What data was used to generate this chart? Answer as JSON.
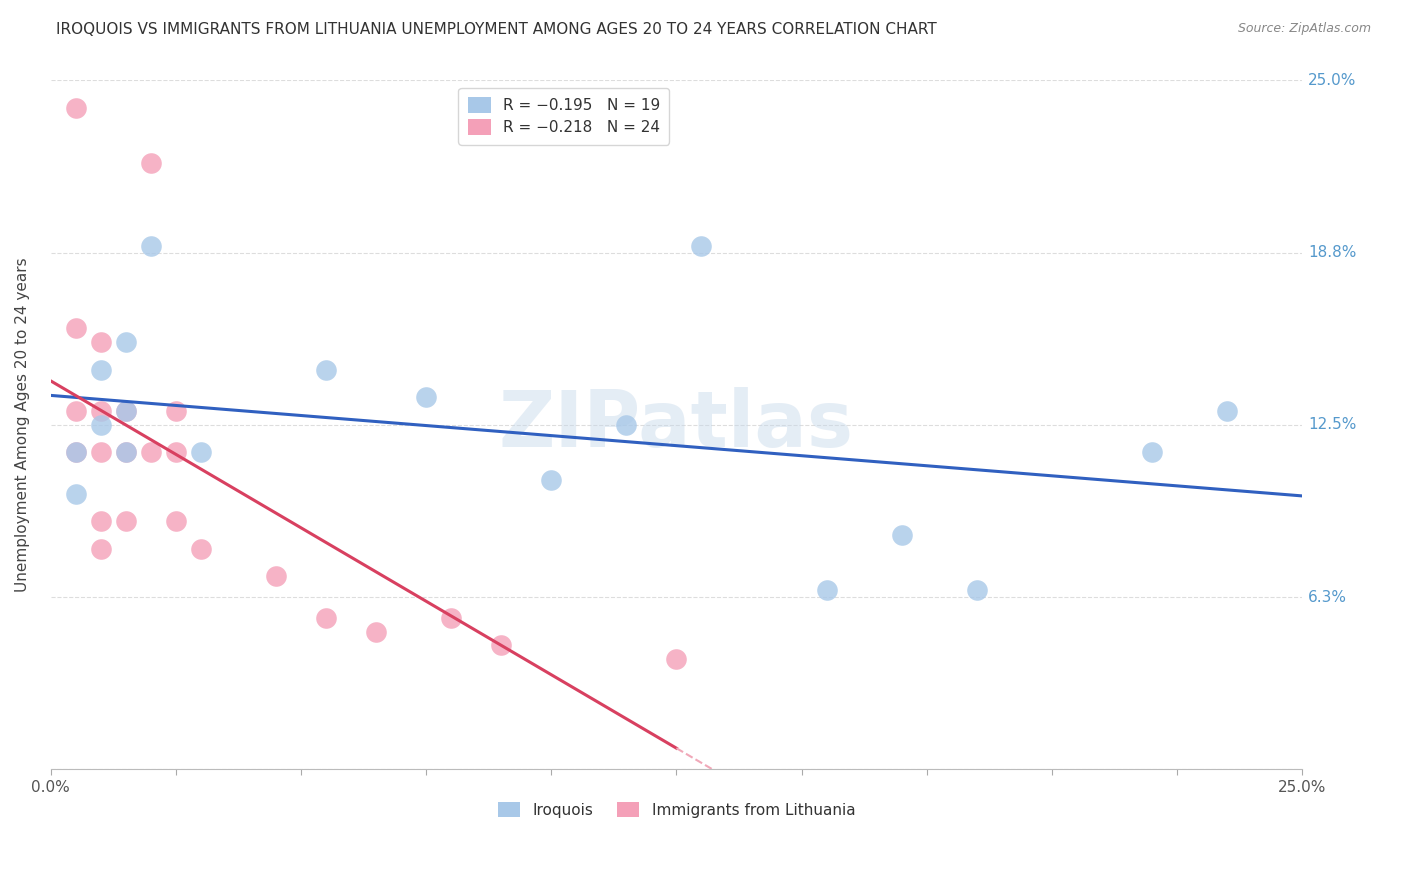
{
  "title": "IROQUOIS VS IMMIGRANTS FROM LITHUANIA UNEMPLOYMENT AMONG AGES 20 TO 24 YEARS CORRELATION CHART",
  "source": "Source: ZipAtlas.com",
  "ylabel": "Unemployment Among Ages 20 to 24 years",
  "xlim": [
    0.0,
    0.25
  ],
  "ylim": [
    0.0,
    0.25
  ],
  "watermark": "ZIPatlas",
  "iroquois_color": "#a8c8e8",
  "lithuania_color": "#f4a0b8",
  "trend_iroquois_color": "#3060c0",
  "trend_lithuania_color": "#d84060",
  "trend_lithuania_dashed_color": "#f0a8b8",
  "iroquois_x": [
    0.005,
    0.005,
    0.01,
    0.01,
    0.015,
    0.015,
    0.015,
    0.02,
    0.03,
    0.055,
    0.075,
    0.1,
    0.115,
    0.13,
    0.155,
    0.17,
    0.185,
    0.22,
    0.235
  ],
  "iroquois_y": [
    0.115,
    0.1,
    0.145,
    0.125,
    0.155,
    0.13,
    0.115,
    0.19,
    0.115,
    0.145,
    0.135,
    0.105,
    0.125,
    0.19,
    0.065,
    0.085,
    0.065,
    0.115,
    0.13
  ],
  "lithuania_x": [
    0.005,
    0.005,
    0.005,
    0.005,
    0.01,
    0.01,
    0.01,
    0.01,
    0.01,
    0.015,
    0.015,
    0.015,
    0.02,
    0.02,
    0.025,
    0.025,
    0.025,
    0.03,
    0.045,
    0.055,
    0.065,
    0.08,
    0.09,
    0.125
  ],
  "lithuania_y": [
    0.24,
    0.16,
    0.13,
    0.115,
    0.155,
    0.13,
    0.115,
    0.09,
    0.08,
    0.13,
    0.115,
    0.09,
    0.22,
    0.115,
    0.13,
    0.115,
    0.09,
    0.08,
    0.07,
    0.055,
    0.05,
    0.055,
    0.045,
    0.04
  ],
  "grid_color": "#dddddd",
  "background_color": "#ffffff",
  "ytick_values": [
    0.0,
    0.0625,
    0.125,
    0.1875,
    0.25
  ],
  "ytick_labels_right": [
    "",
    "6.3%",
    "12.5%",
    "18.8%",
    "25.0%"
  ],
  "xtick_values": [
    0.0,
    0.025,
    0.05,
    0.075,
    0.1,
    0.125,
    0.15,
    0.175,
    0.2,
    0.225,
    0.25
  ],
  "xtick_labels": [
    "0.0%",
    "",
    "",
    "",
    "",
    "",
    "",
    "",
    "",
    "",
    "25.0%"
  ]
}
